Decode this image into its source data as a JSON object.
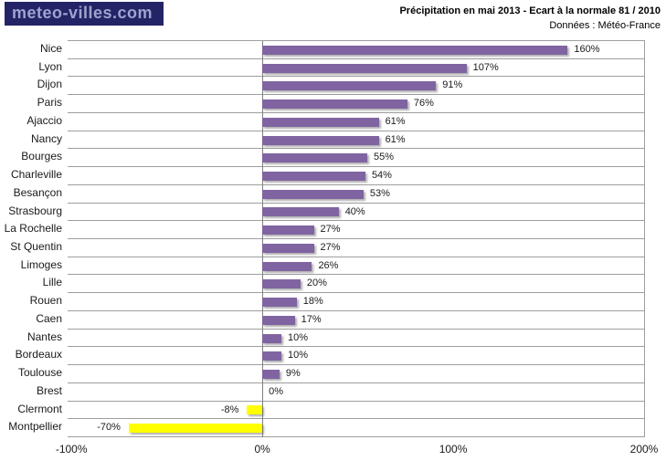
{
  "logo": {
    "text": "meteo-villes.com",
    "bg_color": "#232366",
    "text_color": "#9FA3CE"
  },
  "header": {
    "title": "Précipitation en mai 2013 - Ecart à la normale 81 / 2010",
    "subtitle": "Données : Météo-France"
  },
  "chart_data": {
    "type": "bar",
    "orientation": "horizontal",
    "title": "Précipitation en mai 2013 - Ecart à la normale 81 / 2010",
    "subtitle": "Données : Météo-France",
    "categories": [
      "Nice",
      "Lyon",
      "Dijon",
      "Paris",
      "Ajaccio",
      "Nancy",
      "Bourges",
      "Charleville",
      "Besançon",
      "Strasbourg",
      "La Rochelle",
      "St Quentin",
      "Limoges",
      "Lille",
      "Rouen",
      "Caen",
      "Nantes",
      "Bordeaux",
      "Toulouse",
      "Brest",
      "Clermont",
      "Montpellier"
    ],
    "values": [
      160,
      107,
      91,
      76,
      61,
      61,
      55,
      54,
      53,
      40,
      27,
      27,
      26,
      20,
      18,
      17,
      10,
      10,
      9,
      0,
      -8,
      -70
    ],
    "value_labels": [
      "160%",
      "107%",
      "91%",
      "76%",
      "61%",
      "61%",
      "55%",
      "54%",
      "53%",
      "40%",
      "27%",
      "27%",
      "26%",
      "20%",
      "18%",
      "17%",
      "10%",
      "10%",
      "9%",
      "0%",
      "-8%",
      "-70%"
    ],
    "x_ticks": [
      {
        "value": -100,
        "label": "-100%"
      },
      {
        "value": 0,
        "label": "0%"
      },
      {
        "value": 100,
        "label": "100%"
      },
      {
        "value": 200,
        "label": "200%"
      }
    ],
    "xlim": [
      -100,
      200
    ],
    "xlabel": "",
    "ylabel": "",
    "grid": "horizontal category separator lines; vertical axis line at 0%",
    "legend": "none",
    "colors": {
      "positive_bar": "#8064A2",
      "negative_bar": "#FFFF00",
      "gridline": "#9e9e9e",
      "zero_axis": "#7f7f7f",
      "text": "#1a1a1a"
    }
  }
}
